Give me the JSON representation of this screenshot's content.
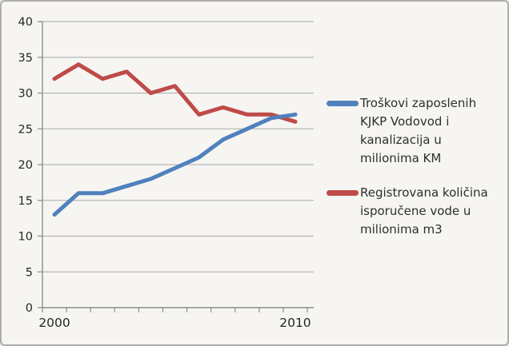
{
  "chart_data": {
    "type": "line",
    "x": [
      2000,
      2001,
      2002,
      2003,
      2004,
      2005,
      2006,
      2007,
      2008,
      2009,
      2010
    ],
    "x_tick_labels": [
      "2000",
      "2010"
    ],
    "y_ticks": [
      0,
      5,
      10,
      15,
      20,
      25,
      30,
      35,
      40
    ],
    "ylim": [
      0,
      40
    ],
    "grid": true,
    "legend_position": "right",
    "title": "",
    "xlabel": "",
    "ylabel": "",
    "series": [
      {
        "name": "Troškovi zaposlenih KJKP Vodovod i kanalizacija u milionima KM",
        "color": "#4F81BD",
        "values": [
          13,
          16,
          16,
          17,
          18,
          19.5,
          21,
          23.5,
          25,
          26.5,
          27
        ]
      },
      {
        "name": "Registrovana količina isporučene vode u milionima m3",
        "color": "#BE4B48",
        "values": [
          32,
          34,
          32,
          33,
          30,
          31,
          27,
          28,
          27,
          27,
          26
        ]
      }
    ]
  },
  "legend": {
    "items": [
      {
        "label": "Troškovi zaposlenih KJKP Vodovod i kanalizacija u milionima KM"
      },
      {
        "label": "Registrovana količina isporučene vode u milionima m3"
      }
    ]
  }
}
